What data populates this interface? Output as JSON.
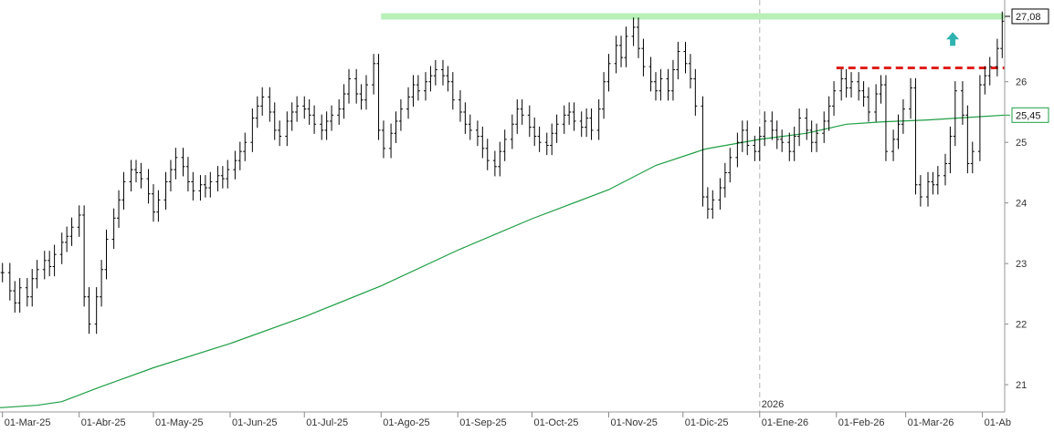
{
  "chart_data": {
    "type": "ohlc",
    "title": "",
    "xlabel": "",
    "ylabel": "",
    "ylim": [
      20.55,
      27.35
    ],
    "grid": false,
    "x_range": [
      "2025-02-28",
      "2026-04-10"
    ],
    "x_ticks": [
      {
        "date": "2025-03-01",
        "label": "01-Mar-25"
      },
      {
        "date": "2025-04-01",
        "label": "01-Abr-25"
      },
      {
        "date": "2025-05-01",
        "label": "01-May-25"
      },
      {
        "date": "2025-06-01",
        "label": "01-Jun-25"
      },
      {
        "date": "2025-07-01",
        "label": "01-Jul-25"
      },
      {
        "date": "2025-08-01",
        "label": "01-Ago-25"
      },
      {
        "date": "2025-09-01",
        "label": "01-Sep-25"
      },
      {
        "date": "2025-10-01",
        "label": "01-Oct-25"
      },
      {
        "date": "2025-11-01",
        "label": "01-Nov-25"
      },
      {
        "date": "2025-12-01",
        "label": "01-Dic-25"
      },
      {
        "date": "2026-01-01",
        "label": "01-Ene-26"
      },
      {
        "date": "2026-02-01",
        "label": "01-Feb-26"
      },
      {
        "date": "2026-03-01",
        "label": "01-Mar-26"
      },
      {
        "date": "2026-04-01",
        "label": "01-Ab"
      }
    ],
    "y_ticks": [
      21,
      22,
      23,
      24,
      25,
      26
    ],
    "year_separator": {
      "date": "2026-01-01",
      "label": "2026"
    },
    "price_label": {
      "value": 27.08,
      "text": "27,08",
      "color": "#000000"
    },
    "ma_label": {
      "value": 25.45,
      "text": "25,45",
      "color": "#1e9e44"
    },
    "resistance_line": {
      "value": 27.08,
      "from": "2025-08-01",
      "to": "2026-04-10",
      "color": "#b8f0b8"
    },
    "breakout_line": {
      "value": 26.23,
      "from": "2026-02-01",
      "to": "2026-04-10",
      "color": "#e0201c"
    },
    "arrow": {
      "date": "2026-03-20",
      "value": 26.7,
      "direction": "up",
      "color": "#2fb3b0"
    },
    "series": [
      {
        "kind": "ohlc",
        "color": "#000000",
        "points": [
          [
            "2025-03-01",
            22.85
          ],
          [
            "2025-03-04",
            22.55
          ],
          [
            "2025-03-06",
            22.35
          ],
          [
            "2025-03-08",
            22.6
          ],
          [
            "2025-03-11",
            22.45
          ],
          [
            "2025-03-13",
            22.75
          ],
          [
            "2025-03-15",
            22.9
          ],
          [
            "2025-03-18",
            23.05
          ],
          [
            "2025-03-20",
            22.95
          ],
          [
            "2025-03-22",
            23.15
          ],
          [
            "2025-03-25",
            23.35
          ],
          [
            "2025-03-27",
            23.45
          ],
          [
            "2025-03-29",
            23.6
          ],
          [
            "2025-04-01",
            23.8
          ],
          [
            "2025-04-03",
            22.45
          ],
          [
            "2025-04-05",
            22.0
          ],
          [
            "2025-04-08",
            22.45
          ],
          [
            "2025-04-10",
            22.9
          ],
          [
            "2025-04-12",
            23.4
          ],
          [
            "2025-04-15",
            23.75
          ],
          [
            "2025-04-17",
            24.05
          ],
          [
            "2025-04-19",
            24.35
          ],
          [
            "2025-04-22",
            24.55
          ],
          [
            "2025-04-24",
            24.5
          ],
          [
            "2025-04-26",
            24.4
          ],
          [
            "2025-04-29",
            24.15
          ],
          [
            "2025-05-01",
            23.85
          ],
          [
            "2025-05-03",
            24.05
          ],
          [
            "2025-05-06",
            24.35
          ],
          [
            "2025-05-08",
            24.55
          ],
          [
            "2025-05-10",
            24.75
          ],
          [
            "2025-05-13",
            24.6
          ],
          [
            "2025-05-15",
            24.35
          ],
          [
            "2025-05-17",
            24.2
          ],
          [
            "2025-05-20",
            24.3
          ],
          [
            "2025-05-22",
            24.25
          ],
          [
            "2025-05-24",
            24.35
          ],
          [
            "2025-05-27",
            24.45
          ],
          [
            "2025-05-29",
            24.4
          ],
          [
            "2025-05-31",
            24.55
          ],
          [
            "2025-06-03",
            24.7
          ],
          [
            "2025-06-05",
            24.85
          ],
          [
            "2025-06-07",
            25.0
          ],
          [
            "2025-06-10",
            25.4
          ],
          [
            "2025-06-12",
            25.6
          ],
          [
            "2025-06-14",
            25.75
          ],
          [
            "2025-06-17",
            25.5
          ],
          [
            "2025-06-19",
            25.2
          ],
          [
            "2025-06-21",
            25.1
          ],
          [
            "2025-06-24",
            25.35
          ],
          [
            "2025-06-26",
            25.5
          ],
          [
            "2025-06-28",
            25.6
          ],
          [
            "2025-07-01",
            25.55
          ],
          [
            "2025-07-03",
            25.45
          ],
          [
            "2025-07-05",
            25.3
          ],
          [
            "2025-07-08",
            25.2
          ],
          [
            "2025-07-10",
            25.35
          ],
          [
            "2025-07-12",
            25.45
          ],
          [
            "2025-07-15",
            25.55
          ],
          [
            "2025-07-17",
            25.8
          ],
          [
            "2025-07-19",
            26.05
          ],
          [
            "2025-07-22",
            25.8
          ],
          [
            "2025-07-24",
            25.7
          ],
          [
            "2025-07-26",
            25.95
          ],
          [
            "2025-07-29",
            26.3
          ],
          [
            "2025-07-31",
            25.2
          ],
          [
            "2025-08-02",
            24.9
          ],
          [
            "2025-08-05",
            25.15
          ],
          [
            "2025-08-07",
            25.35
          ],
          [
            "2025-08-09",
            25.55
          ],
          [
            "2025-08-12",
            25.75
          ],
          [
            "2025-08-14",
            25.95
          ],
          [
            "2025-08-16",
            25.85
          ],
          [
            "2025-08-19",
            26.0
          ],
          [
            "2025-08-21",
            26.1
          ],
          [
            "2025-08-23",
            26.2
          ],
          [
            "2025-08-26",
            26.1
          ],
          [
            "2025-08-28",
            26.0
          ],
          [
            "2025-08-30",
            25.7
          ],
          [
            "2025-09-02",
            25.5
          ],
          [
            "2025-09-04",
            25.3
          ],
          [
            "2025-09-06",
            25.2
          ],
          [
            "2025-09-09",
            25.1
          ],
          [
            "2025-09-11",
            24.9
          ],
          [
            "2025-09-13",
            24.7
          ],
          [
            "2025-09-16",
            24.6
          ],
          [
            "2025-09-18",
            24.85
          ],
          [
            "2025-09-20",
            25.05
          ],
          [
            "2025-09-23",
            25.3
          ],
          [
            "2025-09-25",
            25.55
          ],
          [
            "2025-09-27",
            25.45
          ],
          [
            "2025-09-30",
            25.25
          ],
          [
            "2025-10-02",
            25.1
          ],
          [
            "2025-10-04",
            25.0
          ],
          [
            "2025-10-07",
            24.95
          ],
          [
            "2025-10-09",
            25.15
          ],
          [
            "2025-10-11",
            25.3
          ],
          [
            "2025-10-14",
            25.45
          ],
          [
            "2025-10-16",
            25.5
          ],
          [
            "2025-10-18",
            25.35
          ],
          [
            "2025-10-21",
            25.25
          ],
          [
            "2025-10-23",
            25.4
          ],
          [
            "2025-10-25",
            25.2
          ],
          [
            "2025-10-28",
            25.55
          ],
          [
            "2025-10-30",
            26.0
          ],
          [
            "2025-11-01",
            26.3
          ],
          [
            "2025-11-04",
            26.6
          ],
          [
            "2025-11-06",
            26.4
          ],
          [
            "2025-11-08",
            26.75
          ],
          [
            "2025-11-11",
            26.9
          ],
          [
            "2025-11-13",
            26.55
          ],
          [
            "2025-11-15",
            26.25
          ],
          [
            "2025-11-18",
            26.0
          ],
          [
            "2025-11-20",
            25.85
          ],
          [
            "2025-11-22",
            26.05
          ],
          [
            "2025-11-25",
            25.85
          ],
          [
            "2025-11-27",
            26.2
          ],
          [
            "2025-11-29",
            26.5
          ],
          [
            "2025-12-02",
            26.3
          ],
          [
            "2025-12-04",
            26.05
          ],
          [
            "2025-12-06",
            25.6
          ],
          [
            "2025-12-09",
            24.1
          ],
          [
            "2025-12-11",
            23.9
          ],
          [
            "2025-12-13",
            24.05
          ],
          [
            "2025-12-16",
            24.25
          ],
          [
            "2025-12-18",
            24.5
          ],
          [
            "2025-12-20",
            24.75
          ],
          [
            "2025-12-23",
            25.0
          ],
          [
            "2025-12-25",
            25.2
          ],
          [
            "2025-12-27",
            24.95
          ],
          [
            "2025-12-30",
            24.85
          ],
          [
            "2026-01-01",
            25.1
          ],
          [
            "2026-01-03",
            25.35
          ],
          [
            "2026-01-06",
            25.2
          ],
          [
            "2026-01-08",
            25.05
          ],
          [
            "2026-01-10",
            25.0
          ],
          [
            "2026-01-13",
            24.85
          ],
          [
            "2026-01-15",
            25.1
          ],
          [
            "2026-01-17",
            25.4
          ],
          [
            "2026-01-20",
            25.2
          ],
          [
            "2026-01-22",
            25.0
          ],
          [
            "2026-01-24",
            25.15
          ],
          [
            "2026-01-27",
            25.35
          ],
          [
            "2026-01-29",
            25.6
          ],
          [
            "2026-01-31",
            25.85
          ],
          [
            "2026-02-03",
            26.05
          ],
          [
            "2026-02-05",
            25.9
          ],
          [
            "2026-02-07",
            26.0
          ],
          [
            "2026-02-10",
            25.85
          ],
          [
            "2026-02-12",
            25.75
          ],
          [
            "2026-02-14",
            25.5
          ],
          [
            "2026-02-17",
            25.8
          ],
          [
            "2026-02-19",
            25.95
          ],
          [
            "2026-02-21",
            24.85
          ],
          [
            "2026-02-24",
            25.05
          ],
          [
            "2026-02-26",
            25.3
          ],
          [
            "2026-02-28",
            25.55
          ],
          [
            "2026-03-03",
            25.9
          ],
          [
            "2026-03-05",
            24.3
          ],
          [
            "2026-03-07",
            24.1
          ],
          [
            "2026-03-10",
            24.35
          ],
          [
            "2026-03-12",
            24.3
          ],
          [
            "2026-03-14",
            24.45
          ],
          [
            "2026-03-17",
            24.65
          ],
          [
            "2026-03-19",
            25.1
          ],
          [
            "2026-03-21",
            25.85
          ],
          [
            "2026-03-24",
            25.45
          ],
          [
            "2026-03-26",
            24.65
          ],
          [
            "2026-03-28",
            24.85
          ],
          [
            "2026-03-31",
            25.95
          ],
          [
            "2026-04-02",
            26.1
          ],
          [
            "2026-04-04",
            26.25
          ],
          [
            "2026-04-07",
            26.55
          ],
          [
            "2026-04-09",
            27.0
          ]
        ]
      },
      {
        "kind": "line",
        "color": "#1e9e44",
        "points": [
          [
            "2025-02-28",
            20.62
          ],
          [
            "2025-03-15",
            20.66
          ],
          [
            "2025-03-25",
            20.72
          ],
          [
            "2025-04-10",
            20.97
          ],
          [
            "2025-05-01",
            21.28
          ],
          [
            "2025-06-01",
            21.68
          ],
          [
            "2025-07-01",
            22.12
          ],
          [
            "2025-08-01",
            22.63
          ],
          [
            "2025-09-01",
            23.22
          ],
          [
            "2025-10-01",
            23.74
          ],
          [
            "2025-11-01",
            24.22
          ],
          [
            "2025-11-20",
            24.62
          ],
          [
            "2025-12-10",
            24.89
          ],
          [
            "2026-01-01",
            25.05
          ],
          [
            "2026-01-20",
            25.15
          ],
          [
            "2026-02-05",
            25.3
          ],
          [
            "2026-02-20",
            25.34
          ],
          [
            "2026-03-10",
            25.37
          ],
          [
            "2026-04-10",
            25.45
          ]
        ]
      }
    ]
  }
}
